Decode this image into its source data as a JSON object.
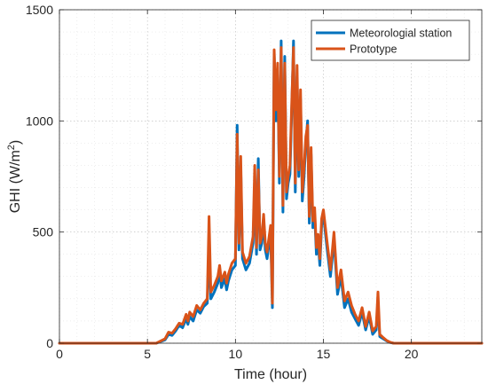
{
  "chart_data": {
    "type": "line",
    "xlabel": "Time (hour)",
    "ylabel_prefix": "GHI (W/m",
    "ylabel_superscript": "2",
    "ylabel_suffix": ")",
    "xlim": [
      0,
      24
    ],
    "ylim": [
      0,
      1500
    ],
    "x_ticks": [
      0,
      5,
      10,
      15,
      20
    ],
    "y_ticks": [
      0,
      500,
      1000,
      1500
    ],
    "grid": true,
    "minor_grid": true,
    "legend_position": "top-right",
    "series": [
      {
        "name": "Meteorologial station",
        "color": "#0072BD",
        "x": [
          0,
          5.5,
          6,
          6.2,
          6.4,
          6.6,
          6.8,
          7,
          7.2,
          7.3,
          7.4,
          7.6,
          7.8,
          8,
          8.2,
          8.4,
          8.5,
          8.6,
          8.8,
          9,
          9.1,
          9.2,
          9.4,
          9.5,
          9.6,
          9.8,
          10,
          10.1,
          10.2,
          10.3,
          10.4,
          10.6,
          10.8,
          11,
          11.1,
          11.2,
          11.3,
          11.4,
          11.5,
          11.6,
          11.7,
          11.8,
          12,
          12.1,
          12.2,
          12.3,
          12.4,
          12.5,
          12.6,
          12.7,
          12.8,
          12.9,
          13,
          13.1,
          13.2,
          13.3,
          13.4,
          13.5,
          13.6,
          13.7,
          13.8,
          13.9,
          14,
          14.1,
          14.2,
          14.3,
          14.4,
          14.5,
          14.6,
          14.7,
          14.8,
          14.9,
          15,
          15.2,
          15.4,
          15.5,
          15.6,
          15.8,
          16,
          16.2,
          16.4,
          16.6,
          16.8,
          17,
          17.2,
          17.4,
          17.6,
          17.8,
          18,
          18.1,
          18.2,
          18.4,
          18.6,
          18.8,
          19,
          19.2,
          19.5,
          24
        ],
        "y": [
          0,
          0,
          15,
          40,
          35,
          55,
          80,
          70,
          110,
          85,
          120,
          100,
          150,
          135,
          165,
          180,
          440,
          200,
          230,
          270,
          330,
          250,
          290,
          240,
          280,
          330,
          350,
          980,
          420,
          800,
          380,
          330,
          360,
          450,
          700,
          400,
          830,
          420,
          450,
          560,
          420,
          380,
          500,
          160,
          1300,
          1000,
          1230,
          720,
          1360,
          590,
          1290,
          650,
          720,
          760,
          1050,
          1360,
          680,
          1200,
          750,
          1100,
          640,
          750,
          900,
          1000,
          540,
          850,
          520,
          580,
          400,
          460,
          350,
          530,
          580,
          430,
          300,
          380,
          470,
          220,
          300,
          160,
          200,
          140,
          110,
          80,
          140,
          60,
          120,
          40,
          60,
          180,
          30,
          20,
          10,
          3,
          0,
          0,
          0,
          0
        ]
      },
      {
        "name": "Prototype",
        "color": "#D95319",
        "x": [
          0,
          5.5,
          6,
          6.2,
          6.4,
          6.6,
          6.8,
          7,
          7.2,
          7.3,
          7.4,
          7.6,
          7.8,
          8,
          8.2,
          8.4,
          8.5,
          8.6,
          8.8,
          9,
          9.1,
          9.2,
          9.4,
          9.5,
          9.6,
          9.8,
          10,
          10.1,
          10.2,
          10.3,
          10.4,
          10.6,
          10.8,
          11,
          11.1,
          11.2,
          11.3,
          11.4,
          11.5,
          11.6,
          11.7,
          11.8,
          12,
          12.1,
          12.2,
          12.3,
          12.4,
          12.5,
          12.6,
          12.7,
          12.8,
          12.9,
          13,
          13.1,
          13.2,
          13.3,
          13.4,
          13.5,
          13.6,
          13.7,
          13.8,
          13.9,
          14,
          14.1,
          14.2,
          14.3,
          14.4,
          14.5,
          14.6,
          14.7,
          14.8,
          14.9,
          15,
          15.2,
          15.4,
          15.5,
          15.6,
          15.8,
          16,
          16.2,
          16.4,
          16.6,
          16.8,
          17,
          17.2,
          17.4,
          17.6,
          17.8,
          18,
          18.1,
          18.2,
          18.4,
          18.6,
          18.8,
          19,
          19.2,
          19.5,
          24
        ],
        "y": [
          0,
          0,
          20,
          50,
          45,
          65,
          90,
          85,
          130,
          100,
          140,
          120,
          170,
          150,
          180,
          200,
          570,
          230,
          260,
          300,
          350,
          280,
          320,
          270,
          310,
          360,
          380,
          940,
          450,
          840,
          410,
          360,
          390,
          480,
          800,
          430,
          780,
          450,
          480,
          580,
          450,
          410,
          530,
          180,
          1320,
          1050,
          1260,
          750,
          1330,
          620,
          1260,
          680,
          750,
          800,
          1080,
          1330,
          720,
          1250,
          780,
          1140,
          680,
          790,
          930,
          980,
          570,
          880,
          550,
          610,
          430,
          490,
          380,
          560,
          600,
          460,
          330,
          410,
          500,
          250,
          330,
          190,
          230,
          170,
          130,
          100,
          160,
          75,
          140,
          55,
          75,
          230,
          40,
          25,
          12,
          4,
          0,
          0,
          0,
          0
        ]
      }
    ]
  }
}
